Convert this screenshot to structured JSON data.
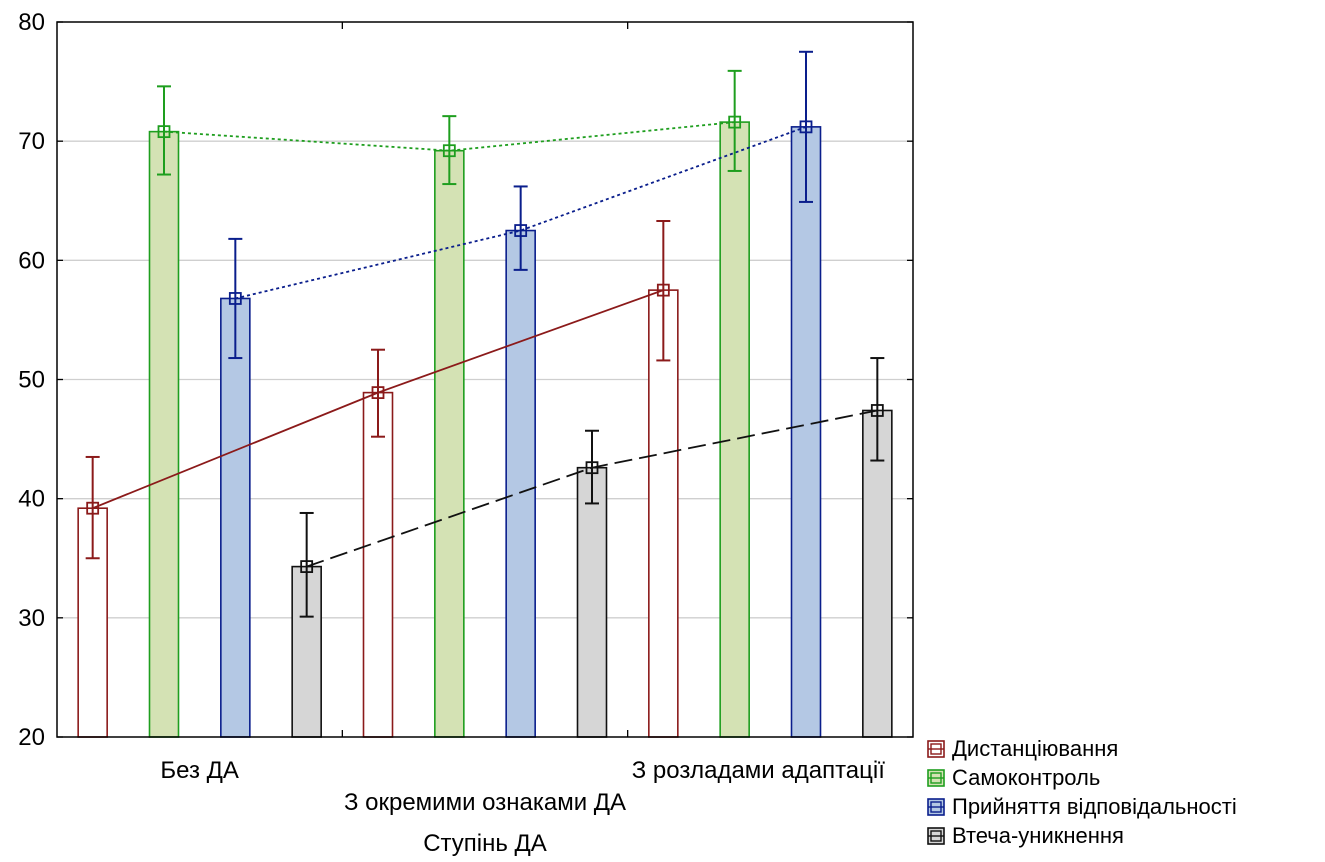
{
  "chart_data": {
    "type": "bar",
    "title": "",
    "xlabel": "Ступінь ДА",
    "ylabel": "",
    "ylim": [
      20,
      80
    ],
    "yticks": [
      20,
      30,
      40,
      50,
      60,
      70,
      80
    ],
    "grid": true,
    "legend_position": "bottom-right",
    "categories": [
      "Без ДА",
      "З окремими ознаками ДА",
      "З розладами адаптації"
    ],
    "series": [
      {
        "name": "Дистанціювання",
        "values": [
          39.2,
          48.9,
          57.5
        ],
        "err_low": [
          35.0,
          45.2,
          51.6
        ],
        "err_high": [
          43.5,
          52.5,
          63.3
        ],
        "bar_fill": "#ffffff",
        "color": "#8b1a1a",
        "line_style": "solid"
      },
      {
        "name": "Самоконтроль",
        "values": [
          70.8,
          69.2,
          71.6
        ],
        "err_low": [
          67.2,
          66.4,
          67.5
        ],
        "err_high": [
          74.6,
          72.1,
          75.9
        ],
        "bar_fill": "#d4e2b4",
        "color": "#1e9e1e",
        "line_style": "dotted"
      },
      {
        "name": "Прийняття відповідальності",
        "values": [
          56.8,
          62.5,
          71.2
        ],
        "err_low": [
          51.8,
          59.2,
          64.9
        ],
        "err_high": [
          61.8,
          66.2,
          77.5
        ],
        "bar_fill": "#b4c8e4",
        "color": "#0a1e8c",
        "line_style": "dotted"
      },
      {
        "name": "Втеча-уникнення",
        "values": [
          34.3,
          42.6,
          47.4
        ],
        "err_low": [
          30.1,
          39.6,
          43.2
        ],
        "err_high": [
          38.8,
          45.7,
          51.8
        ],
        "bar_fill": "#d6d6d6",
        "color": "#111111",
        "line_style": "dashed"
      }
    ]
  }
}
